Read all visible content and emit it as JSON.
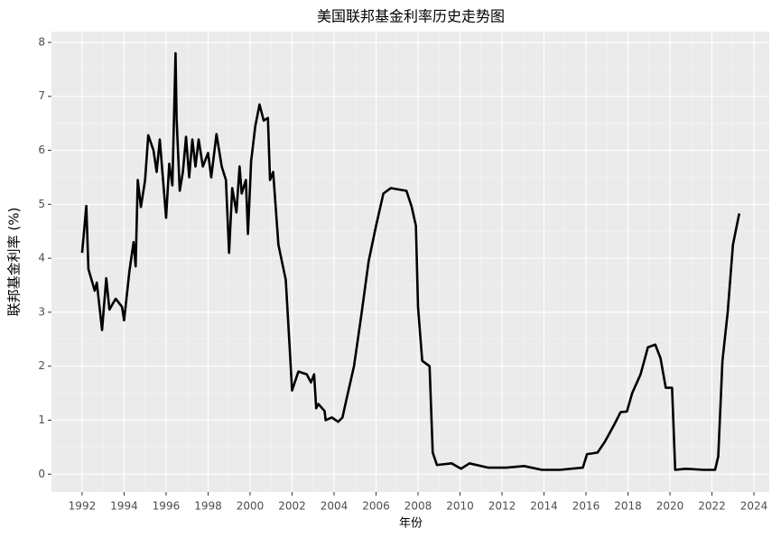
{
  "chart_data": {
    "type": "line",
    "title": "美国联邦基金利率历史走势图",
    "x_label": "年份",
    "y_label": "联邦基金利率 (%)",
    "xlim": [
      1990.54,
      2024.73
    ],
    "xticks": [
      1992,
      1994,
      1996,
      1998,
      2000,
      2002,
      2004,
      2006,
      2008,
      2010,
      2012,
      2014,
      2016,
      2018,
      2020,
      2022,
      2024
    ],
    "ylim": [
      -0.33,
      8.2
    ],
    "yticks": [
      0,
      1,
      2,
      3,
      4,
      5,
      6,
      7,
      8
    ],
    "grid": true,
    "series": [
      {
        "name": "联邦基金利率",
        "color": "#000000",
        "x": [
          1992,
          1992.2,
          1992.3,
          1992.6,
          1992.7,
          1992.95,
          1993.15,
          1993.3,
          1993.6,
          1993.9,
          1994,
          1994.25,
          1994.45,
          1994.55,
          1994.65,
          1994.8,
          1995,
          1995.15,
          1995.4,
          1995.55,
          1995.7,
          1996,
          1996.15,
          1996.3,
          1996.45,
          1996.5,
          1996.65,
          1996.8,
          1996.95,
          1997.1,
          1997.25,
          1997.4,
          1997.55,
          1997.75,
          1998,
          1998.15,
          1998.4,
          1998.65,
          1998.85,
          1999,
          1999.15,
          1999.35,
          1999.5,
          1999.6,
          1999.8,
          1999.9,
          2000.05,
          2000.25,
          2000.45,
          2000.65,
          2000.85,
          2000.95,
          2001.1,
          2001.35,
          2001.7,
          2001.9,
          2002,
          2002.3,
          2002.7,
          2002.9,
          2003.05,
          2003.15,
          2003.25,
          2003.55,
          2003.6,
          2003.9,
          2004.2,
          2004.4,
          2004.6,
          2004.95,
          2005.3,
          2005.65,
          2006,
          2006.35,
          2006.7,
          2007.45,
          2007.7,
          2007.9,
          2008,
          2008.2,
          2008.55,
          2008.7,
          2008.9,
          2009.6,
          2010.05,
          2010.45,
          2011.35,
          2012.2,
          2013.05,
          2013.9,
          2014.75,
          2015.85,
          2016.05,
          2016.55,
          2016.9,
          2017.35,
          2017.65,
          2017.95,
          2018.2,
          2018.6,
          2018.95,
          2019.3,
          2019.55,
          2019.8,
          2020.1,
          2020.25,
          2020.75,
          2021.6,
          2022.15,
          2022.3,
          2022.5,
          2022.75,
          2023,
          2023.3
        ],
        "values": [
          4.1,
          4.97,
          3.8,
          3.4,
          3.55,
          2.67,
          3.63,
          3.05,
          3.25,
          3.1,
          2.85,
          3.75,
          4.3,
          3.85,
          5.45,
          4.95,
          5.45,
          6.28,
          6,
          5.6,
          6.2,
          4.75,
          5.75,
          5.35,
          7.8,
          6.6,
          5.25,
          5.6,
          6.25,
          5.5,
          6.2,
          5.7,
          6.2,
          5.7,
          5.95,
          5.5,
          6.3,
          5.7,
          5.45,
          4.1,
          5.3,
          4.85,
          5.7,
          5.2,
          5.45,
          4.45,
          5.8,
          6.45,
          6.85,
          6.55,
          6.6,
          5.45,
          5.6,
          4.25,
          3.6,
          2.25,
          1.55,
          1.9,
          1.85,
          1.7,
          1.85,
          1.22,
          1.3,
          1.17,
          1,
          1.05,
          0.97,
          1.05,
          1.4,
          2,
          2.95,
          3.95,
          4.6,
          5.2,
          5.3,
          5.25,
          4.95,
          4.6,
          3.1,
          2.1,
          2,
          0.4,
          0.17,
          0.2,
          0.1,
          0.2,
          0.12,
          0.12,
          0.15,
          0.08,
          0.08,
          0.12,
          0.37,
          0.4,
          0.6,
          0.92,
          1.15,
          1.16,
          1.5,
          1.85,
          2.35,
          2.4,
          2.15,
          1.6,
          1.6,
          0.08,
          0.1,
          0.08,
          0.08,
          0.33,
          2.1,
          3,
          4.25,
          4.83
        ]
      }
    ]
  }
}
